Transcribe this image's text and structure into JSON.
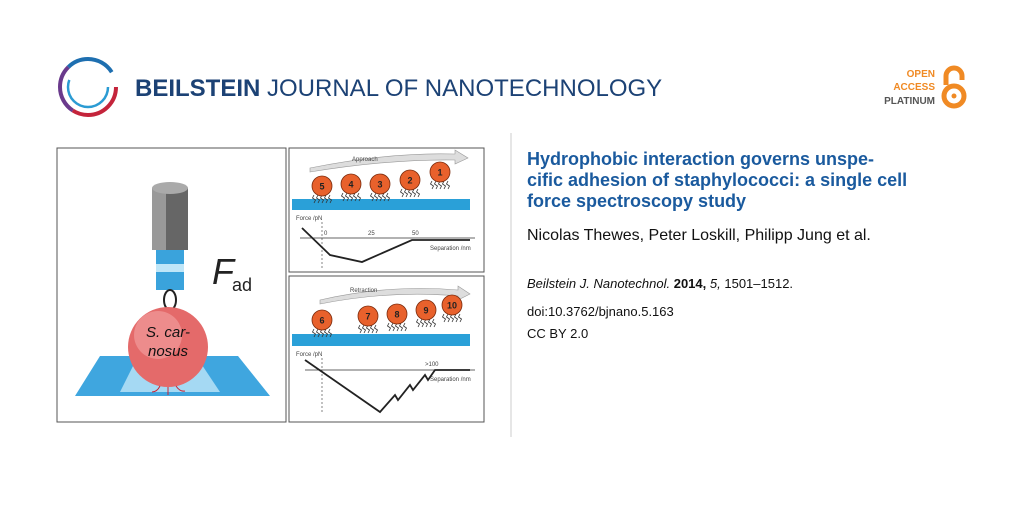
{
  "header": {
    "journal_bold": "BEILSTEIN",
    "journal_rest": "JOURNAL OF NANOTECHNOLOGY",
    "badge": [
      "OPEN",
      "ACCESS",
      "PLATINUM"
    ]
  },
  "figure": {
    "left": {
      "force_symbol": "F",
      "force_subscript": "ad",
      "cell_label": [
        "S. car-",
        "nosus"
      ]
    },
    "approach": {
      "label": "Approach",
      "cells": [
        "5",
        "4",
        "3",
        "2",
        "1"
      ],
      "y_axis": "Force /pN",
      "x_ticks": [
        "0",
        "25",
        "50"
      ],
      "x_axis": "Separation /nm"
    },
    "retraction": {
      "label": "Retraction",
      "cells": [
        "6",
        "7",
        "8",
        "9",
        "10"
      ],
      "y_axis": "Force /pN",
      "x_ticks": [
        ">100"
      ],
      "x_axis": "Separation /nm"
    }
  },
  "article": {
    "title": [
      "Hydrophobic interaction governs unspe-",
      "cific adhesion of staphylococci: a single cell",
      "force spectroscopy study"
    ],
    "authors": "Nicolas Thewes, Peter Loskill, Philipp Jung et al.",
    "citation": {
      "journal": "Beilstein J. Nanotechnol.",
      "year": "2014,",
      "volume": "5,",
      "pages": "1501–1512."
    },
    "doi": "doi:10.3762/bjnano.5.163",
    "license": "CC BY 2.0"
  }
}
